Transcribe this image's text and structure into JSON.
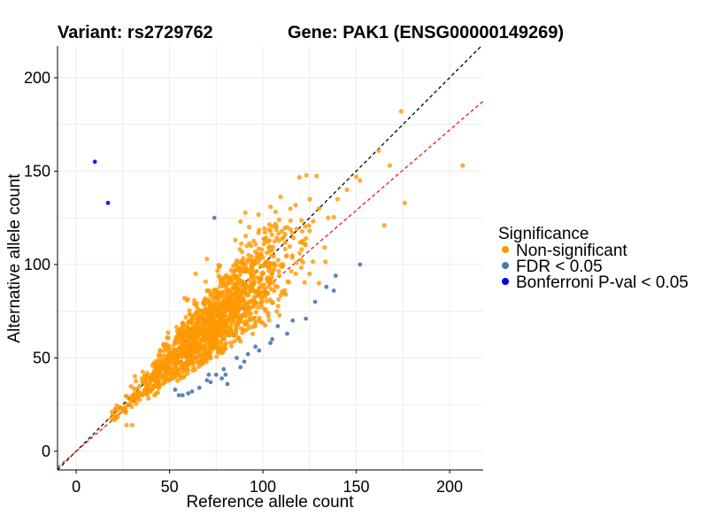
{
  "chart_data": {
    "type": "scatter",
    "title_left": "Variant: rs2729762",
    "title_right": "Gene: PAK1 (ENSG00000149269)",
    "xlabel": "Reference allele count",
    "ylabel": "Alternative allele count",
    "xlim": [
      -10,
      218
    ],
    "ylim": [
      -10,
      217
    ],
    "xticks": [
      0,
      50,
      100,
      150,
      200
    ],
    "yticks": [
      0,
      50,
      100,
      150,
      200
    ],
    "grid": true,
    "reference_lines": [
      {
        "slope": 1.0,
        "intercept": 0,
        "color": "#000000",
        "style": "dashed"
      },
      {
        "slope": 0.86,
        "intercept": 0,
        "color": "#e41a1c",
        "style": "dashed"
      }
    ],
    "legend": {
      "title": "Significance",
      "placement": "right",
      "entries": [
        {
          "label": "Non-significant",
          "color": "#ff9900"
        },
        {
          "label": "FDR < 0.05",
          "color": "#4a77b4"
        },
        {
          "label": "Bonferroni P-val < 0.05",
          "color": "#0000ff"
        }
      ]
    },
    "series": [
      {
        "name": "Non-significant",
        "color": "#ff9900",
        "cloud": {
          "count": 1500,
          "x_mean": 72,
          "x_sd": 22,
          "ratio_mean": 0.93,
          "ratio_sd": 0.15
        },
        "points": [
          {
            "x": 174,
            "y": 182
          },
          {
            "x": 207,
            "y": 153
          },
          {
            "x": 168,
            "y": 153
          },
          {
            "x": 162,
            "y": 161
          },
          {
            "x": 165,
            "y": 121
          },
          {
            "x": 176,
            "y": 133
          },
          {
            "x": 150,
            "y": 147
          },
          {
            "x": 152,
            "y": 145
          },
          {
            "x": 140,
            "y": 135
          },
          {
            "x": 145,
            "y": 140
          },
          {
            "x": 135,
            "y": 125
          },
          {
            "x": 130,
            "y": 130
          },
          {
            "x": 120,
            "y": 112
          },
          {
            "x": 125,
            "y": 118
          },
          {
            "x": 88,
            "y": 123
          },
          {
            "x": 113,
            "y": 120
          },
          {
            "x": 125,
            "y": 95
          },
          {
            "x": 130,
            "y": 90
          },
          {
            "x": 118,
            "y": 101
          },
          {
            "x": 30,
            "y": 14
          },
          {
            "x": 27,
            "y": 14
          },
          {
            "x": 22,
            "y": 18
          },
          {
            "x": 20,
            "y": 17
          },
          {
            "x": 40,
            "y": 33
          },
          {
            "x": 58,
            "y": 82
          },
          {
            "x": 64,
            "y": 95
          },
          {
            "x": 70,
            "y": 103
          }
        ]
      },
      {
        "name": "FDR < 0.05",
        "color": "#4a77b4",
        "points": [
          {
            "x": 74,
            "y": 125
          },
          {
            "x": 152,
            "y": 100
          },
          {
            "x": 139,
            "y": 94
          },
          {
            "x": 134,
            "y": 88
          },
          {
            "x": 138,
            "y": 86
          },
          {
            "x": 128,
            "y": 80
          },
          {
            "x": 123,
            "y": 71
          },
          {
            "x": 116,
            "y": 70
          },
          {
            "x": 113,
            "y": 63
          },
          {
            "x": 108,
            "y": 67
          },
          {
            "x": 105,
            "y": 60
          },
          {
            "x": 104,
            "y": 58
          },
          {
            "x": 96,
            "y": 56
          },
          {
            "x": 92,
            "y": 52
          },
          {
            "x": 98,
            "y": 54
          },
          {
            "x": 88,
            "y": 45
          },
          {
            "x": 86,
            "y": 50
          },
          {
            "x": 80,
            "y": 41
          },
          {
            "x": 79,
            "y": 44
          },
          {
            "x": 75,
            "y": 41
          },
          {
            "x": 78,
            "y": 39
          },
          {
            "x": 72,
            "y": 37
          },
          {
            "x": 70,
            "y": 38
          },
          {
            "x": 66,
            "y": 34
          },
          {
            "x": 62,
            "y": 32
          },
          {
            "x": 60,
            "y": 31
          },
          {
            "x": 57,
            "y": 30
          },
          {
            "x": 55,
            "y": 30
          },
          {
            "x": 53,
            "y": 33
          },
          {
            "x": 71,
            "y": 41
          },
          {
            "x": 81,
            "y": 36
          },
          {
            "x": 90,
            "y": 48
          }
        ]
      },
      {
        "name": "Bonferroni P-val < 0.05",
        "color": "#0000ff",
        "points": [
          {
            "x": 10,
            "y": 155
          },
          {
            "x": 17,
            "y": 133
          }
        ]
      }
    ]
  }
}
